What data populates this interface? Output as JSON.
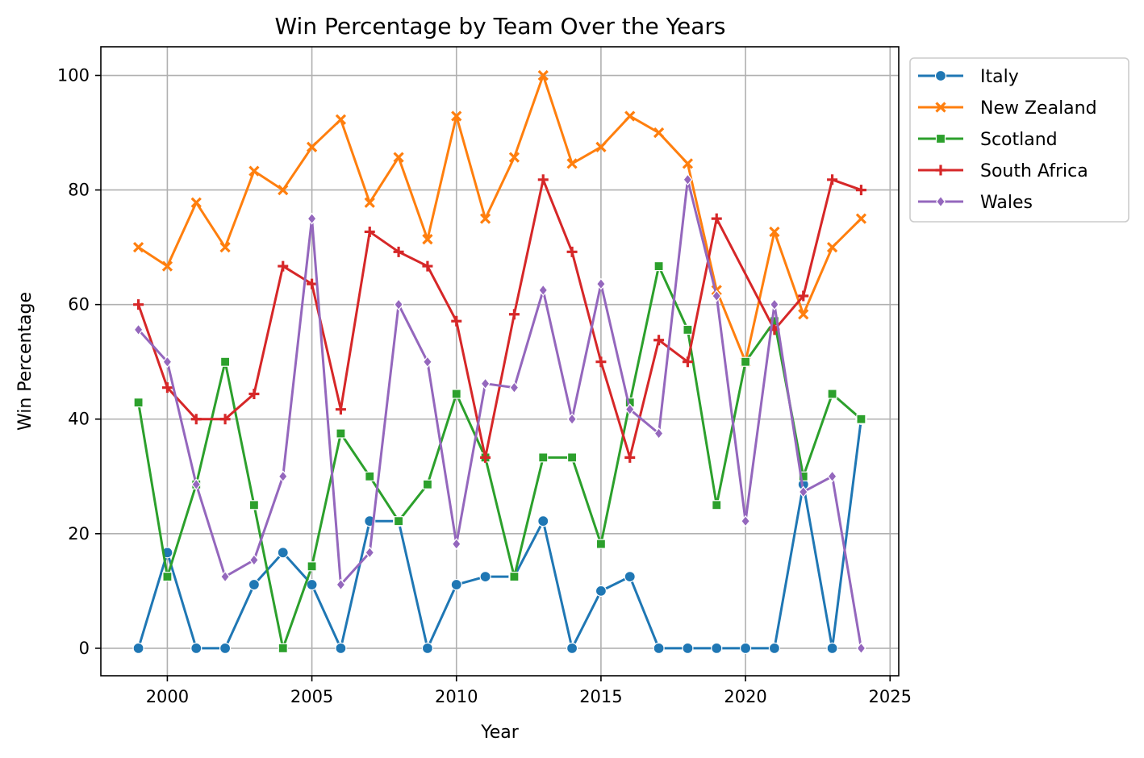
{
  "chart_data": {
    "type": "line",
    "title": "Win Percentage by Team Over the Years",
    "xlabel": "Year",
    "ylabel": "Win Percentage",
    "xlim": [
      1997.7,
      2025.3
    ],
    "ylim": [
      -4.8,
      105
    ],
    "xticks": [
      2000,
      2005,
      2010,
      2015,
      2020,
      2025
    ],
    "yticks": [
      0,
      20,
      40,
      60,
      80,
      100
    ],
    "grid": true,
    "legend_position": "outside-top-right",
    "series": [
      {
        "name": "Italy",
        "color": "#1f77b4",
        "marker": "circle",
        "points": [
          [
            1999,
            0
          ],
          [
            2000,
            16.7
          ],
          [
            2001,
            0
          ],
          [
            2002,
            0
          ],
          [
            2003,
            11.1
          ],
          [
            2004,
            16.7
          ],
          [
            2005,
            11.1
          ],
          [
            2006,
            0
          ],
          [
            2007,
            22.2
          ],
          [
            2008,
            22.2
          ],
          [
            2009,
            0
          ],
          [
            2010,
            11.1
          ],
          [
            2011,
            12.5
          ],
          [
            2012,
            12.5
          ],
          [
            2013,
            22.2
          ],
          [
            2014,
            0
          ],
          [
            2015,
            10
          ],
          [
            2016,
            12.5
          ],
          [
            2017,
            0
          ],
          [
            2018,
            0
          ],
          [
            2019,
            0
          ],
          [
            2020,
            0
          ],
          [
            2021,
            0
          ],
          [
            2022,
            28.6
          ],
          [
            2023,
            0
          ],
          [
            2024,
            40
          ]
        ]
      },
      {
        "name": "New Zealand",
        "color": "#ff7f0e",
        "marker": "x",
        "points": [
          [
            1999,
            70
          ],
          [
            2000,
            66.7
          ],
          [
            2001,
            77.8
          ],
          [
            2002,
            70
          ],
          [
            2003,
            83.3
          ],
          [
            2004,
            80
          ],
          [
            2005,
            87.5
          ],
          [
            2006,
            92.3
          ],
          [
            2007,
            77.8
          ],
          [
            2008,
            85.7
          ],
          [
            2009,
            71.4
          ],
          [
            2010,
            92.9
          ],
          [
            2011,
            75
          ],
          [
            2012,
            85.7
          ],
          [
            2013,
            100
          ],
          [
            2014,
            84.6
          ],
          [
            2015,
            87.5
          ],
          [
            2016,
            92.9
          ],
          [
            2017,
            90
          ],
          [
            2018,
            84.6
          ],
          [
            2019,
            62.5
          ],
          [
            2020,
            50
          ],
          [
            2021,
            72.7
          ],
          [
            2022,
            58.3
          ],
          [
            2023,
            70
          ],
          [
            2024,
            75
          ]
        ]
      },
      {
        "name": "Scotland",
        "color": "#2ca02c",
        "marker": "square",
        "points": [
          [
            1999,
            42.9
          ],
          [
            2000,
            12.5
          ],
          [
            2001,
            28.6
          ],
          [
            2002,
            50
          ],
          [
            2003,
            25
          ],
          [
            2004,
            0
          ],
          [
            2005,
            14.3
          ],
          [
            2006,
            37.5
          ],
          [
            2007,
            30
          ],
          [
            2008,
            22.2
          ],
          [
            2009,
            28.6
          ],
          [
            2010,
            44.4
          ],
          [
            2011,
            33.3
          ],
          [
            2012,
            12.5
          ],
          [
            2013,
            33.3
          ],
          [
            2014,
            33.3
          ],
          [
            2015,
            18.2
          ],
          [
            2016,
            42.9
          ],
          [
            2017,
            66.7
          ],
          [
            2018,
            55.6
          ],
          [
            2019,
            25
          ],
          [
            2020,
            50
          ],
          [
            2021,
            57.1
          ],
          [
            2022,
            30
          ],
          [
            2023,
            44.4
          ],
          [
            2024,
            40
          ]
        ]
      },
      {
        "name": "South Africa",
        "color": "#d62728",
        "marker": "plus",
        "points": [
          [
            1999,
            60
          ],
          [
            2000,
            45.5
          ],
          [
            2001,
            40
          ],
          [
            2002,
            40
          ],
          [
            2003,
            44.4
          ],
          [
            2004,
            66.7
          ],
          [
            2005,
            63.6
          ],
          [
            2006,
            41.7
          ],
          [
            2007,
            72.7
          ],
          [
            2008,
            69.2
          ],
          [
            2009,
            66.7
          ],
          [
            2010,
            57.1
          ],
          [
            2011,
            33.3
          ],
          [
            2012,
            58.3
          ],
          [
            2013,
            81.8
          ],
          [
            2014,
            69.2
          ],
          [
            2015,
            50
          ],
          [
            2016,
            33.3
          ],
          [
            2017,
            53.8
          ],
          [
            2018,
            50
          ],
          [
            2019,
            75
          ],
          [
            2021,
            55.6
          ],
          [
            2022,
            61.5
          ],
          [
            2023,
            81.8
          ],
          [
            2024,
            80
          ]
        ]
      },
      {
        "name": "Wales",
        "color": "#9467bd",
        "marker": "diamond",
        "points": [
          [
            1999,
            55.6
          ],
          [
            2000,
            50
          ],
          [
            2001,
            28.6
          ],
          [
            2002,
            12.5
          ],
          [
            2003,
            15.4
          ],
          [
            2004,
            30
          ],
          [
            2005,
            75
          ],
          [
            2006,
            11.1
          ],
          [
            2007,
            16.7
          ],
          [
            2008,
            60
          ],
          [
            2009,
            50
          ],
          [
            2010,
            18.2
          ],
          [
            2011,
            46.2
          ],
          [
            2012,
            45.5
          ],
          [
            2013,
            62.5
          ],
          [
            2014,
            40
          ],
          [
            2015,
            63.6
          ],
          [
            2016,
            41.7
          ],
          [
            2017,
            37.5
          ],
          [
            2018,
            81.8
          ],
          [
            2019,
            61.5
          ],
          [
            2020,
            22.2
          ],
          [
            2021,
            60
          ],
          [
            2022,
            27.3
          ],
          [
            2023,
            30
          ],
          [
            2024,
            0
          ]
        ]
      }
    ]
  }
}
